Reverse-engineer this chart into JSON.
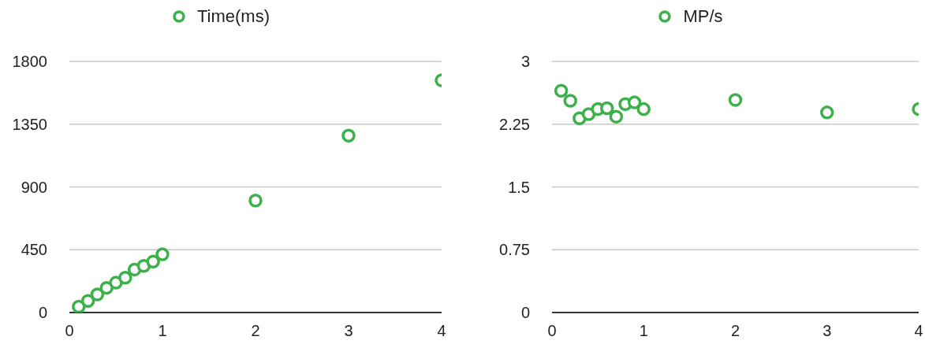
{
  "chart_data": [
    {
      "type": "scatter",
      "x": [
        0.1,
        0.2,
        0.3,
        0.4,
        0.5,
        0.6,
        0.7,
        0.8,
        0.9,
        1,
        2,
        3,
        4
      ],
      "series": [
        {
          "name": "Time(ms)",
          "color": "#3cb04a",
          "values": [
            42,
            83,
            130,
            177,
            214,
            250,
            308,
            334,
            365,
            417,
            803,
            1268,
            1664
          ]
        }
      ],
      "xlim": [
        0,
        4
      ],
      "xticks": [
        0,
        1,
        2,
        3,
        4
      ],
      "ylim": [
        0,
        1800
      ],
      "yticks": [
        0,
        450,
        900,
        1350,
        1800
      ],
      "grid": "y",
      "legend": "top",
      "marker": "circle"
    },
    {
      "type": "scatter",
      "x": [
        0.1,
        0.2,
        0.3,
        0.4,
        0.5,
        0.6,
        0.7,
        0.8,
        0.9,
        1,
        2,
        3,
        4
      ],
      "series": [
        {
          "name": "MP/s",
          "color": "#3cb04a",
          "values": [
            2.65,
            2.53,
            2.32,
            2.37,
            2.43,
            2.44,
            2.34,
            2.49,
            2.51,
            2.43,
            2.54,
            2.39,
            2.43
          ]
        }
      ],
      "xlim": [
        0,
        4
      ],
      "xticks": [
        0,
        1,
        2,
        3,
        4
      ],
      "ylim": [
        0,
        3
      ],
      "yticks": [
        0,
        0.75,
        1.5,
        2.25,
        3
      ],
      "grid": "y",
      "legend": "top",
      "marker": "circle"
    }
  ]
}
